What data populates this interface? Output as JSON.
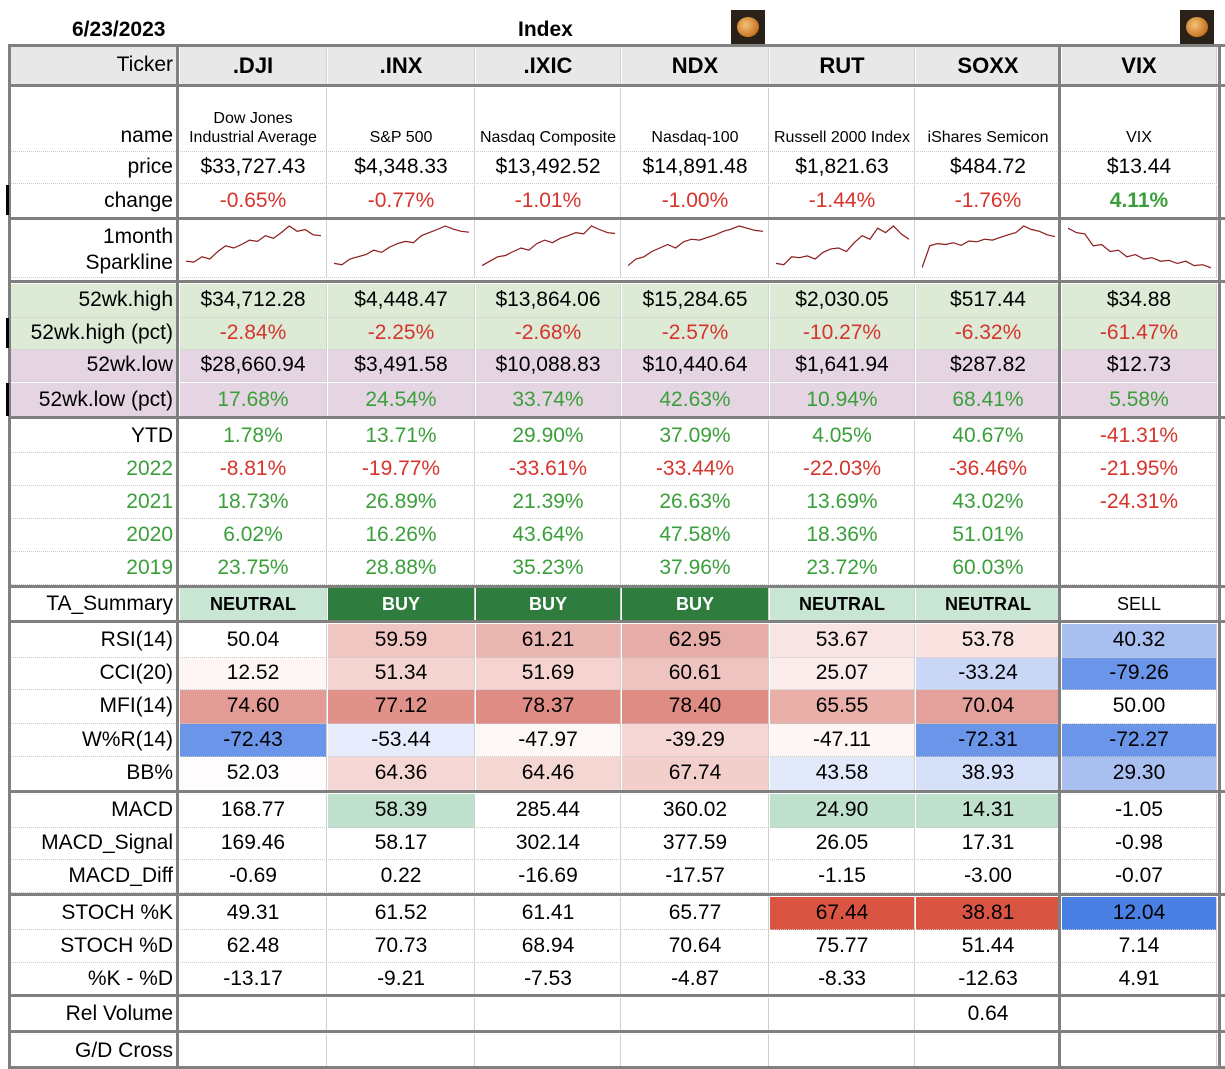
{
  "sheet": {
    "date": "6/23/2023",
    "title": "Index",
    "icons": [
      "pumpkin-avatar-icon",
      "pumpkin-avatar-icon"
    ],
    "columns": [
      ".DJI",
      ".INX",
      ".IXIC",
      "NDX",
      "RUT",
      "SOXX",
      "VIX"
    ],
    "labels": {
      "ticker": "Ticker",
      "name": "name",
      "price": "price",
      "change": "change",
      "spark1": "1month",
      "spark2": "Sparkline",
      "high": "52wk.high",
      "high_pct": "52wk.high (pct)",
      "low": "52wk.low",
      "low_pct": "52wk.low (pct)",
      "ytd": "YTD",
      "y2022": "2022",
      "y2021": "2021",
      "y2020": "2020",
      "y2019": "2019",
      "ta": "TA_Summary",
      "rsi": "RSI(14)",
      "cci": "CCI(20)",
      "mfi": "MFI(14)",
      "wr": "W%R(14)",
      "bb": "BB%",
      "macd": "MACD",
      "macd_signal": "MACD_Signal",
      "macd_diff": "MACD_Diff",
      "stochk": "STOCH %K",
      "stochd": "STOCH %D",
      "kd": "%K - %D",
      "relvol": "Rel Volume",
      "gd": "G/D Cross"
    },
    "names": [
      "Dow Jones Industrial Average",
      "S&P 500",
      "Nasdaq Composite",
      "Nasdaq-100",
      "Russell 2000 Index",
      "iShares Semicon",
      "VIX"
    ],
    "price": [
      "$33,727.43",
      "$4,348.33",
      "$13,492.52",
      "$14,891.48",
      "$1,821.63",
      "$484.72",
      "$13.44"
    ],
    "change": [
      "-0.65%",
      "-0.77%",
      "-1.01%",
      "-1.00%",
      "-1.44%",
      "-1.76%",
      "4.11%"
    ],
    "high": [
      "$34,712.28",
      "$4,448.47",
      "$13,864.06",
      "$15,284.65",
      "$2,030.05",
      "$517.44",
      "$34.88"
    ],
    "high_pct": [
      "-2.84%",
      "-2.25%",
      "-2.68%",
      "-2.57%",
      "-10.27%",
      "-6.32%",
      "-61.47%"
    ],
    "low": [
      "$28,660.94",
      "$3,491.58",
      "$10,088.83",
      "$10,440.64",
      "$1,641.94",
      "$287.82",
      "$12.73"
    ],
    "low_pct": [
      "17.68%",
      "24.54%",
      "33.74%",
      "42.63%",
      "10.94%",
      "68.41%",
      "5.58%"
    ],
    "ytd": [
      "1.78%",
      "13.71%",
      "29.90%",
      "37.09%",
      "4.05%",
      "40.67%",
      "-41.31%"
    ],
    "y2022": [
      "-8.81%",
      "-19.77%",
      "-33.61%",
      "-33.44%",
      "-22.03%",
      "-36.46%",
      "-21.95%"
    ],
    "y2021": [
      "18.73%",
      "26.89%",
      "21.39%",
      "26.63%",
      "13.69%",
      "43.02%",
      "-24.31%"
    ],
    "y2020": [
      "6.02%",
      "16.26%",
      "43.64%",
      "47.58%",
      "18.36%",
      "51.01%",
      ""
    ],
    "y2019": [
      "23.75%",
      "28.88%",
      "35.23%",
      "37.96%",
      "23.72%",
      "60.03%",
      ""
    ],
    "ta": [
      "NEUTRAL",
      "BUY",
      "BUY",
      "BUY",
      "NEUTRAL",
      "NEUTRAL",
      "SELL"
    ],
    "rsi": [
      "50.04",
      "59.59",
      "61.21",
      "62.95",
      "53.67",
      "53.78",
      "40.32"
    ],
    "cci": [
      "12.52",
      "51.34",
      "51.69",
      "60.61",
      "25.07",
      "-33.24",
      "-79.26"
    ],
    "mfi": [
      "74.60",
      "77.12",
      "78.37",
      "78.40",
      "65.55",
      "70.04",
      "50.00"
    ],
    "wr": [
      "-72.43",
      "-53.44",
      "-47.97",
      "-39.29",
      "-47.11",
      "-72.31",
      "-72.27"
    ],
    "bb": [
      "52.03",
      "64.36",
      "64.46",
      "67.74",
      "43.58",
      "38.93",
      "29.30"
    ],
    "macd": [
      "168.77",
      "58.39",
      "285.44",
      "360.02",
      "24.90",
      "14.31",
      "-1.05"
    ],
    "macd_signal": [
      "169.46",
      "58.17",
      "302.14",
      "377.59",
      "26.05",
      "17.31",
      "-0.98"
    ],
    "macd_diff": [
      "-0.69",
      "0.22",
      "-16.69",
      "-17.57",
      "-1.15",
      "-3.00",
      "-0.07"
    ],
    "stochk": [
      "49.31",
      "61.52",
      "61.41",
      "65.77",
      "67.44",
      "38.81",
      "12.04"
    ],
    "stochd": [
      "62.48",
      "70.73",
      "68.94",
      "70.64",
      "75.77",
      "51.44",
      "7.14"
    ],
    "kd": [
      "-13.17",
      "-9.21",
      "-7.53",
      "-4.87",
      "-8.33",
      "-12.63",
      "4.91"
    ],
    "relvol": [
      "",
      "",
      "",
      "",
      "",
      "0.64",
      ""
    ],
    "gd": [
      "",
      "",
      "",
      "",
      "",
      "",
      ""
    ],
    "fills": {
      "ta": [
        "#c9e6d5",
        "#2f7d3e",
        "#2f7d3e",
        "#2f7d3e",
        "#c9e6d5",
        "#c9e6d5",
        "#ffffff"
      ],
      "rsi": [
        "#ffffff",
        "#efc6c2",
        "#e9b6b1",
        "#e6aca7",
        "#f8e4e2",
        "#f8e3e1",
        "#a9bff0"
      ],
      "cci": [
        "#fdf6f5",
        "#f4d4d1",
        "#f4d3d0",
        "#efc3bf",
        "#faeceb",
        "#c9d6f6",
        "#6b95e8"
      ],
      "mfi": [
        "#e39c95",
        "#e0918a",
        "#df8c85",
        "#df8c85",
        "#e9b0aa",
        "#e4a09a",
        "#ffffff"
      ],
      "wr": [
        "#6b95e8",
        "#e6ecfb",
        "#fdf7f6",
        "#f5d8d5",
        "#fdf6f5",
        "#6b95e8",
        "#6b95e8"
      ],
      "bb": [
        "#fefcfc",
        "#f4d7d4",
        "#f4d6d3",
        "#f2cfcb",
        "#e2e9fb",
        "#d6e0f8",
        "#a9bff0"
      ],
      "macd": [
        "#ffffff",
        "#bfe0cd",
        "#ffffff",
        "#ffffff",
        "#bfe0cd",
        "#bfe0cd",
        "#ffffff"
      ],
      "stochk": [
        "#ffffff",
        "#ffffff",
        "#ffffff",
        "#ffffff",
        "#d95443",
        "#d95443",
        "#4a7fe3"
      ]
    },
    "spark": [
      [
        0.2,
        0.18,
        0.3,
        0.25,
        0.42,
        0.55,
        0.5,
        0.58,
        0.68,
        0.65,
        0.78,
        0.72,
        0.85,
        1.0,
        0.88,
        0.92,
        0.8,
        0.78
      ],
      [
        0.15,
        0.12,
        0.25,
        0.3,
        0.35,
        0.45,
        0.4,
        0.52,
        0.6,
        0.65,
        0.62,
        0.78,
        0.85,
        0.92,
        1.0,
        0.93,
        0.88,
        0.86
      ],
      [
        0.1,
        0.2,
        0.3,
        0.33,
        0.42,
        0.5,
        0.45,
        0.6,
        0.68,
        0.62,
        0.72,
        0.78,
        0.85,
        0.82,
        1.0,
        0.92,
        0.85,
        0.83
      ],
      [
        0.1,
        0.25,
        0.3,
        0.42,
        0.5,
        0.58,
        0.5,
        0.64,
        0.7,
        0.68,
        0.74,
        0.8,
        0.88,
        0.93,
        1.0,
        0.95,
        0.9,
        0.88
      ],
      [
        0.15,
        0.12,
        0.3,
        0.28,
        0.32,
        0.25,
        0.4,
        0.48,
        0.5,
        0.42,
        0.62,
        0.78,
        0.7,
        0.95,
        0.85,
        1.0,
        0.82,
        0.7
      ],
      [
        0.05,
        0.55,
        0.6,
        0.58,
        0.62,
        0.56,
        0.66,
        0.64,
        0.7,
        0.68,
        0.74,
        0.8,
        0.85,
        1.0,
        0.92,
        0.88,
        0.8,
        0.76
      ],
      [
        0.95,
        0.85,
        0.82,
        0.55,
        0.58,
        0.42,
        0.45,
        0.3,
        0.35,
        0.25,
        0.28,
        0.2,
        0.22,
        0.15,
        0.2,
        0.1,
        0.12,
        0.05
      ]
    ],
    "spark_color": "#8b1a1a",
    "bands": {
      "high": "#dceaD6",
      "low": "#e5d5e3"
    }
  }
}
